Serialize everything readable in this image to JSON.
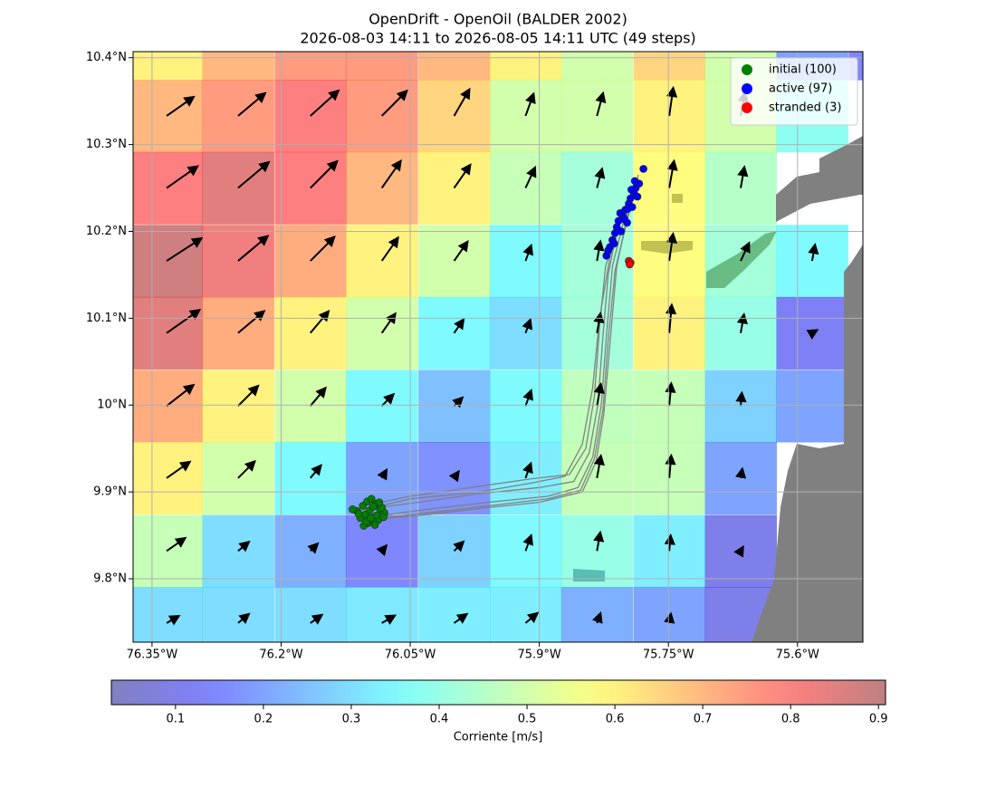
{
  "chart_data": {
    "type": "map",
    "title": "OpenDrift - OpenOil (BALDER 2002)",
    "subtitle": "2026-08-03 14:11 to 2026-08-05 14:11 UTC (49 steps)",
    "xlim": [
      -76.372,
      -75.524
    ],
    "ylim": [
      9.727,
      10.407
    ],
    "xticks": [
      {
        "value": -76.35,
        "label": "76.35°W"
      },
      {
        "value": -76.2,
        "label": "76.2°W"
      },
      {
        "value": -76.05,
        "label": "76.05°W"
      },
      {
        "value": -75.9,
        "label": "75.9°W"
      },
      {
        "value": -75.75,
        "label": "75.75°W"
      },
      {
        "value": -75.6,
        "label": "75.6°W"
      }
    ],
    "yticks": [
      {
        "value": 9.8,
        "label": "9.8°N"
      },
      {
        "value": 9.9,
        "label": "9.9°N"
      },
      {
        "value": 10,
        "label": "10°N"
      },
      {
        "value": 10.1,
        "label": "10.1°N"
      },
      {
        "value": 10.2,
        "label": "10.2°N"
      },
      {
        "value": 10.3,
        "label": "10.3°N"
      },
      {
        "value": 10.4,
        "label": "10.4°N"
      }
    ],
    "grid": true,
    "legend": "upper right",
    "current": {
      "label": "Corriente [m/s]",
      "colormap": "jet",
      "clim": [
        0.027,
        0.908
      ],
      "cticks": [
        0.1,
        0.2,
        0.3,
        0.4,
        0.5,
        0.6,
        0.7,
        0.8,
        0.9
      ],
      "lon": [
        -76.333,
        -76.25,
        -76.166,
        -76.083,
        -75.999,
        -75.916,
        -75.833,
        -75.749,
        -75.666,
        -75.583,
        -75.499
      ],
      "lat": [
        10.416,
        10.333,
        10.25,
        10.166,
        10.083,
        9.999,
        9.916,
        9.832,
        9.749
      ],
      "speed": [
        [
          0.6,
          0.7,
          0.75,
          0.75,
          0.7,
          0.6,
          0.5,
          0.65,
          0.5,
          0.2,
          0.15
        ],
        [
          0.7,
          0.75,
          0.8,
          0.75,
          0.65,
          0.5,
          0.5,
          0.6,
          0.5,
          0.38,
          null
        ],
        [
          0.8,
          0.85,
          0.8,
          0.7,
          0.6,
          0.48,
          0.42,
          0.58,
          0.45,
          null,
          null
        ],
        [
          0.88,
          0.82,
          0.72,
          0.6,
          0.5,
          0.35,
          0.42,
          0.58,
          0.42,
          0.35,
          null
        ],
        [
          0.85,
          0.72,
          0.6,
          0.5,
          0.35,
          0.3,
          0.42,
          0.6,
          0.4,
          0.12,
          null
        ],
        [
          0.72,
          0.6,
          0.5,
          0.35,
          0.25,
          0.35,
          0.47,
          0.48,
          0.28,
          0.2,
          null
        ],
        [
          0.6,
          0.5,
          0.35,
          0.2,
          0.17,
          0.33,
          0.48,
          0.48,
          0.2,
          null,
          null
        ],
        [
          0.48,
          0.3,
          0.22,
          0.15,
          0.28,
          0.35,
          0.4,
          0.33,
          0.1,
          null,
          null
        ],
        [
          0.3,
          0.3,
          0.3,
          0.32,
          0.33,
          0.33,
          0.22,
          0.2,
          0.1,
          null,
          null
        ]
      ],
      "direction": [
        [
          null,
          null,
          null,
          null,
          null,
          null,
          null,
          null,
          null,
          null,
          null
        ],
        [
          55,
          50,
          48,
          45,
          30,
          20,
          15,
          8,
          10,
          null,
          null
        ],
        [
          55,
          50,
          45,
          35,
          35,
          25,
          15,
          10,
          10,
          null,
          null
        ],
        [
          57,
          50,
          45,
          35,
          35,
          20,
          10,
          8,
          25,
          10,
          null
        ],
        [
          55,
          50,
          40,
          35,
          35,
          20,
          10,
          5,
          10,
          60,
          null
        ],
        [
          52,
          45,
          40,
          45,
          45,
          20,
          10,
          5,
          5,
          null,
          null
        ],
        [
          55,
          45,
          40,
          30,
          35,
          20,
          10,
          5,
          10,
          null,
          null
        ],
        [
          55,
          50,
          45,
          40,
          45,
          20,
          10,
          5,
          30,
          null,
          null
        ],
        [
          60,
          50,
          55,
          60,
          55,
          50,
          20,
          10,
          null,
          null,
          null
        ]
      ]
    },
    "trajectories": {
      "color": "#808080",
      "lines": [
        {
          "lon": [
            -76.105,
            -76.04,
            -75.97,
            -75.9,
            -75.86,
            -75.842,
            -75.832,
            -75.826,
            -75.82,
            -75.805
          ],
          "lat": [
            9.88,
            9.888,
            9.898,
            9.905,
            9.912,
            9.945,
            10.0,
            10.08,
            10.15,
            10.225
          ]
        },
        {
          "lon": [
            -76.09,
            -76.03,
            -75.96,
            -75.89,
            -75.855,
            -75.838,
            -75.828,
            -75.822,
            -75.815,
            -75.795
          ],
          "lat": [
            9.872,
            9.88,
            9.888,
            9.895,
            9.905,
            9.94,
            10.0,
            10.08,
            10.16,
            10.24
          ]
        },
        {
          "lon": [
            -76.1,
            -76.05,
            -75.98,
            -75.91,
            -75.865,
            -75.846,
            -75.836,
            -75.83,
            -75.823,
            -75.81
          ],
          "lat": [
            9.885,
            9.895,
            9.905,
            9.915,
            9.92,
            9.95,
            10.01,
            10.09,
            10.16,
            10.2
          ]
        },
        {
          "lon": [
            -76.095,
            -76.03,
            -75.96,
            -75.9,
            -75.85,
            -75.834,
            -75.825,
            -75.818,
            -75.81,
            -75.79
          ],
          "lat": [
            9.868,
            9.874,
            9.882,
            9.888,
            9.9,
            9.935,
            9.99,
            10.07,
            10.16,
            10.255
          ]
        },
        {
          "lon": [
            -76.11,
            -76.05,
            -75.97,
            -75.91,
            -75.87,
            -75.85,
            -75.838,
            -75.83,
            -75.818,
            -75.8
          ],
          "lat": [
            9.878,
            9.892,
            9.9,
            9.91,
            9.918,
            9.955,
            10.02,
            10.1,
            10.17,
            10.23
          ]
        },
        {
          "lon": [
            -76.085,
            -76.02,
            -75.95,
            -75.89,
            -75.852,
            -75.836,
            -75.826,
            -75.82,
            -75.812,
            -75.785
          ],
          "lat": [
            9.87,
            9.877,
            9.885,
            9.892,
            9.902,
            9.938,
            9.995,
            10.075,
            10.155,
            10.265
          ]
        }
      ]
    },
    "series": [
      {
        "name": "initial (100)",
        "color": "#008000",
        "lon": [
          -76.112,
          -76.105,
          -76.1,
          -76.095,
          -76.09,
          -76.085,
          -76.08,
          -76.108,
          -76.102,
          -76.097,
          -76.092,
          -76.087,
          -76.083,
          -76.099,
          -76.094,
          -76.089,
          -76.104,
          -76.11,
          -76.086,
          -76.093,
          -76.101,
          -76.096,
          -76.091,
          -76.117,
          -76.081
        ],
        "lat": [
          9.878,
          9.884,
          9.889,
          9.892,
          9.886,
          9.88,
          9.876,
          9.87,
          9.874,
          9.879,
          9.871,
          9.868,
          9.882,
          9.864,
          9.867,
          9.873,
          9.861,
          9.875,
          9.888,
          9.883,
          9.866,
          9.87,
          9.862,
          9.88,
          9.871
        ]
      },
      {
        "name": "active (97)",
        "color": "#0000ff",
        "lon": [
          -75.822,
          -75.818,
          -75.815,
          -75.812,
          -75.81,
          -75.808,
          -75.805,
          -75.803,
          -75.8,
          -75.798,
          -75.796,
          -75.794,
          -75.792,
          -75.79,
          -75.788,
          -75.786,
          -75.784,
          -75.82,
          -75.813,
          -75.806,
          -75.801,
          -75.797,
          -75.793,
          -75.789,
          -75.779
        ],
        "lat": [
          10.172,
          10.182,
          10.19,
          10.198,
          10.205,
          10.212,
          10.2,
          10.218,
          10.225,
          10.21,
          10.232,
          10.238,
          10.228,
          10.244,
          10.25,
          10.24,
          10.255,
          10.178,
          10.186,
          10.221,
          10.214,
          10.226,
          10.248,
          10.258,
          10.272
        ]
      },
      {
        "name": "stranded (3)",
        "color": "#ff0000",
        "lon": [
          -75.796,
          -75.794,
          -75.795
        ],
        "lat": [
          10.166,
          10.164,
          10.162
        ]
      }
    ]
  }
}
